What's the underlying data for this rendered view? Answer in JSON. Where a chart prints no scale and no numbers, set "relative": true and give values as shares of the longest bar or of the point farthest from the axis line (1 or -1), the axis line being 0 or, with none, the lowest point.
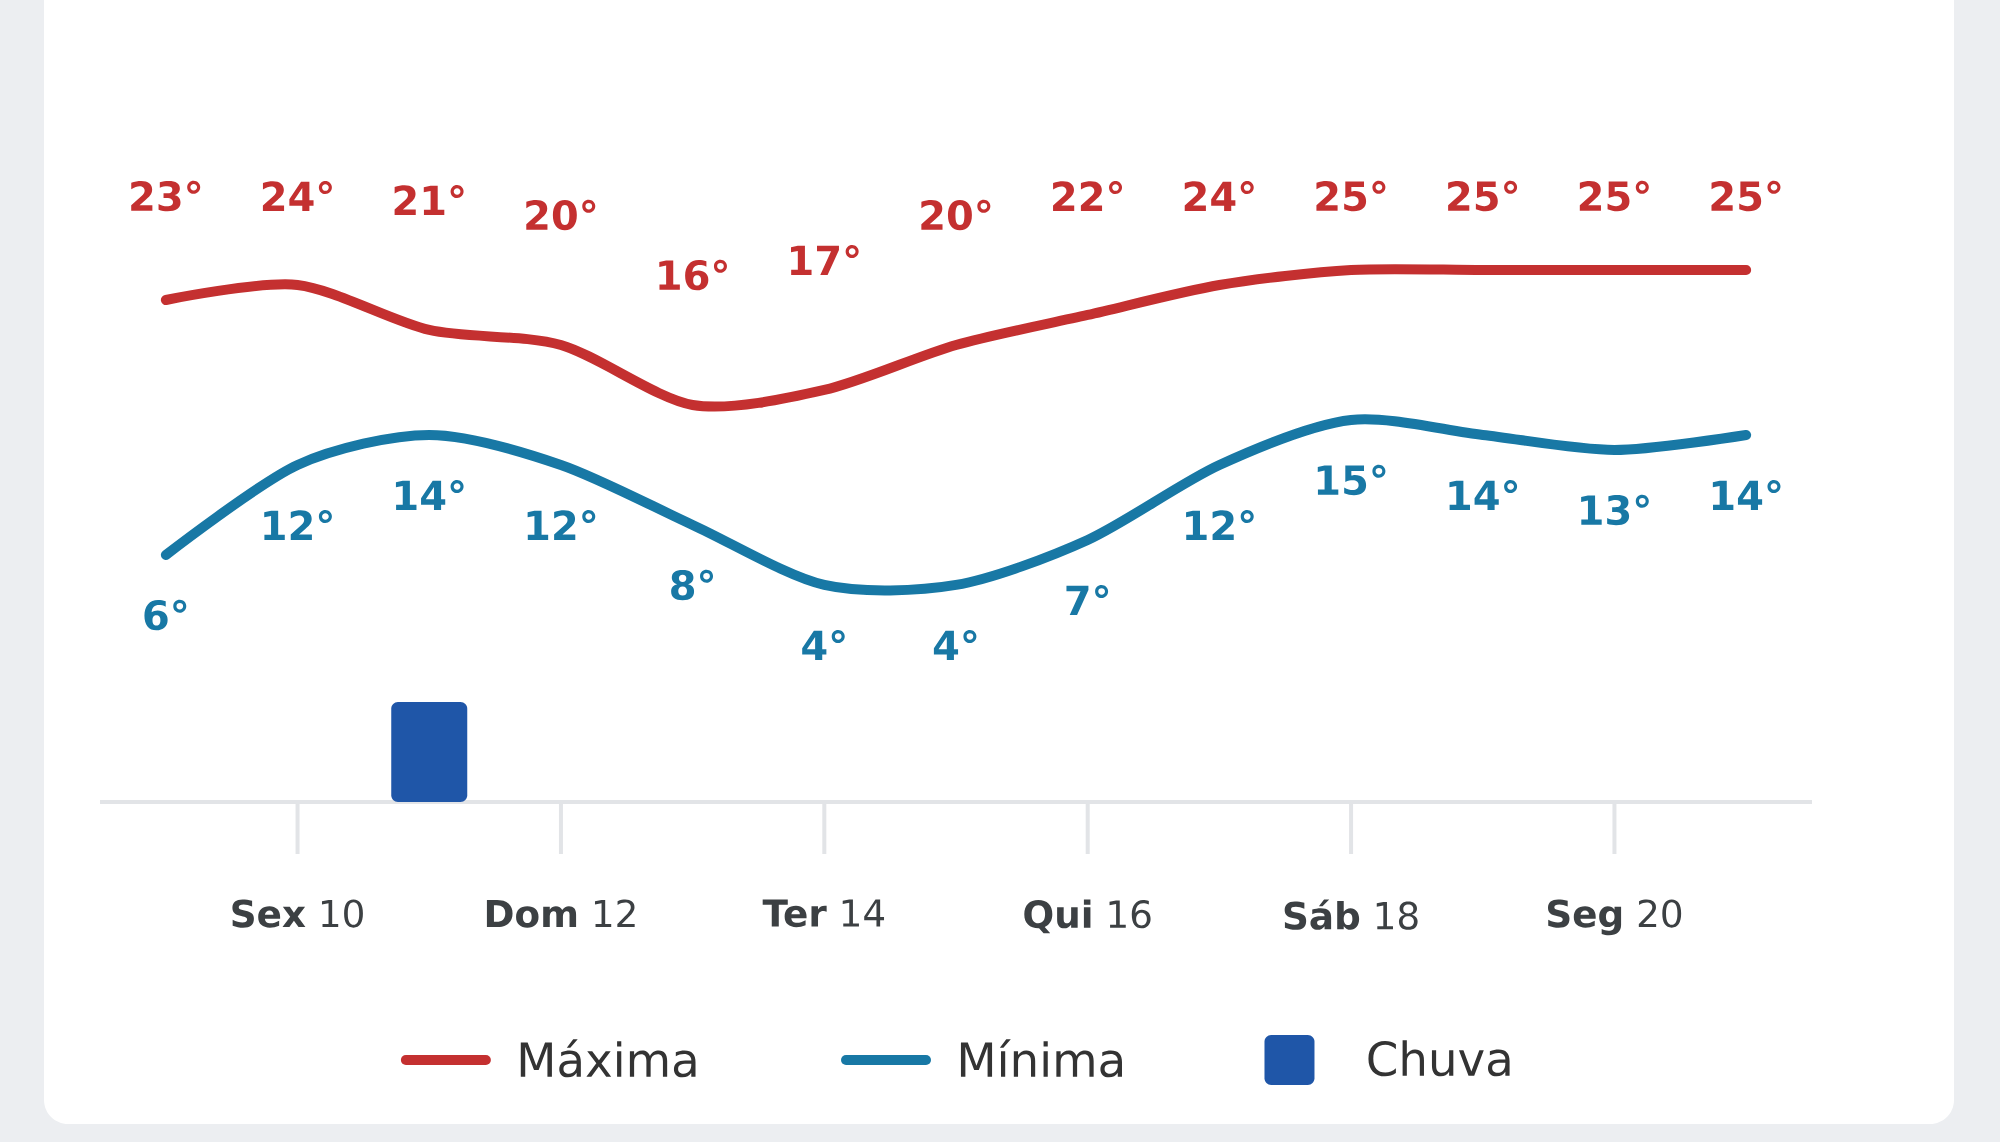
{
  "chart_data": [
    {
      "type": "line",
      "categories": [
        null,
        null,
        null,
        null,
        null,
        null,
        null,
        null,
        null,
        null,
        null,
        null,
        null
      ],
      "legend": "bottom",
      "series": [
        {
          "name": "Máxima",
          "color": "#c43030",
          "values": [
            23,
            24,
            21,
            20,
            16,
            17,
            20,
            22,
            24,
            25,
            25,
            25,
            25
          ],
          "value_labels": [
            "23°",
            "24°",
            "21°",
            "20°",
            "16°",
            "17°",
            "20°",
            "22°",
            "24°",
            "25°",
            "25°",
            "25°",
            "25°"
          ]
        },
        {
          "name": "Mínima",
          "color": "#1878a5",
          "values": [
            6,
            12,
            14,
            12,
            8,
            4,
            4,
            7,
            12,
            15,
            14,
            13,
            14
          ],
          "value_labels": [
            "6°",
            "12°",
            "14°",
            "12°",
            "8°",
            "4°",
            "4°",
            "7°",
            "12°",
            "15°",
            "14°",
            "13°",
            "14°"
          ]
        }
      ]
    },
    {
      "type": "bar",
      "relative": true,
      "categories": [
        null,
        "**Sex** 10",
        null,
        "**Dom** 12",
        null,
        "**Ter** 14",
        null,
        "**Qui** 16",
        null,
        "**Sáb** 18",
        null,
        "**Seg** 20",
        null
      ],
      "legend": "bottom",
      "series": [
        {
          "name": "Chuva",
          "color": "#1f56a8",
          "values": [
            0,
            0,
            1,
            0,
            0,
            0,
            0,
            0,
            0,
            0,
            0,
            0,
            0
          ]
        }
      ]
    }
  ]
}
